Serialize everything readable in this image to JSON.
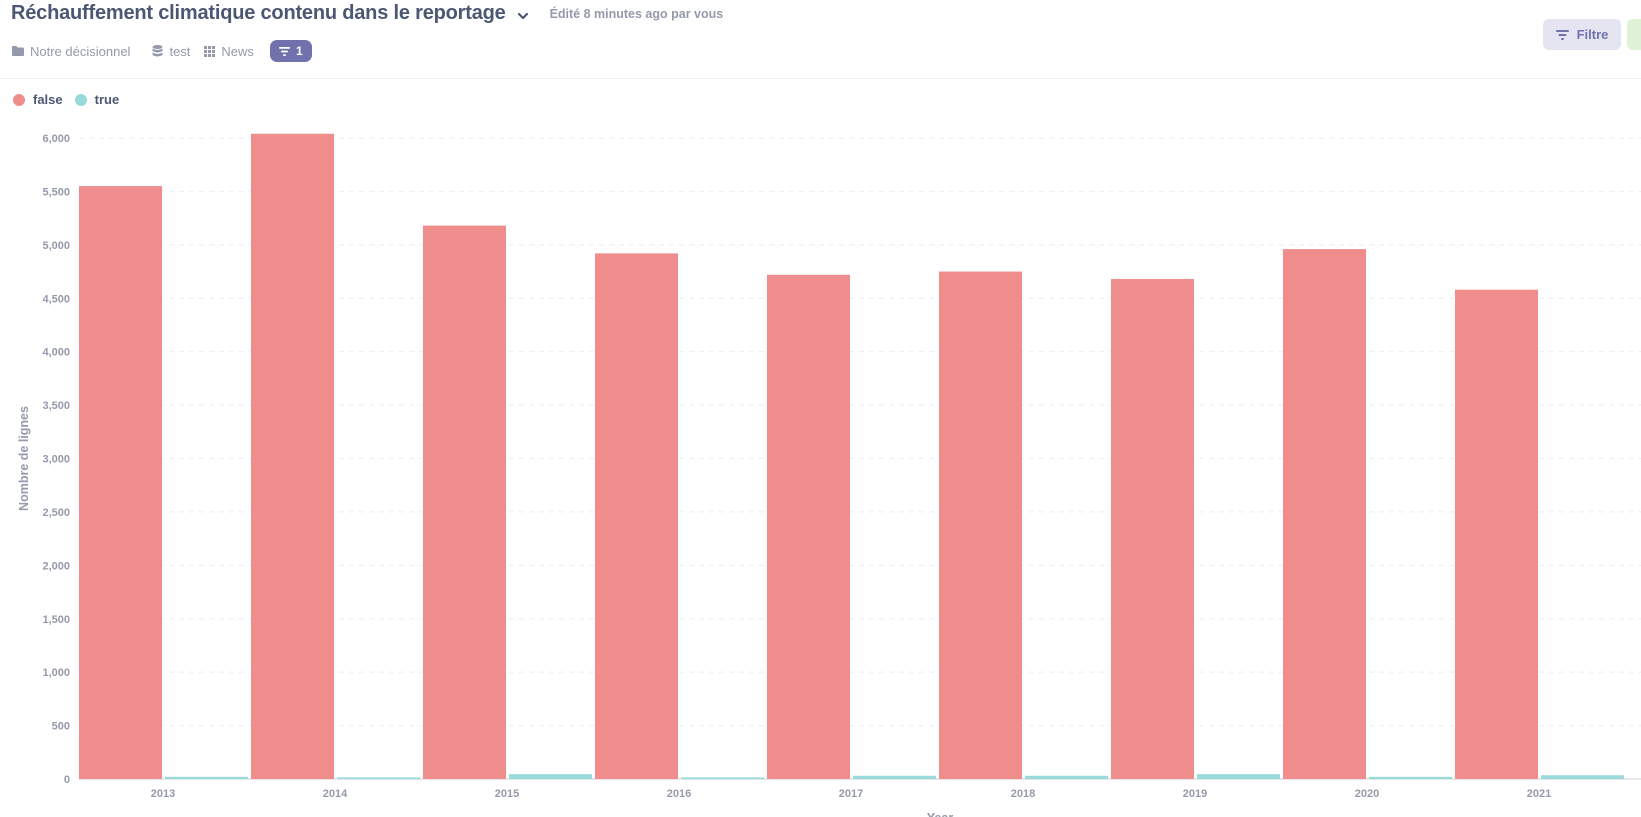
{
  "header": {
    "title": "Réchauffement climatique contenu dans le reportage",
    "edited": "Édité 8 minutes ago par vous",
    "breadcrumbs": [
      {
        "label": "Notre décisionnel",
        "icon": "folder-icon"
      },
      {
        "label": "test",
        "icon": "database-icon"
      },
      {
        "label": "News",
        "icon": "grid-icon"
      }
    ],
    "filter_count": "1",
    "filter_button": "Filtre"
  },
  "colors": {
    "false": "#ef8c8c",
    "true": "#98d9d9",
    "accent": "#7172ad"
  },
  "chart_data": {
    "type": "bar",
    "categories": [
      "2013",
      "2014",
      "2015",
      "2016",
      "2017",
      "2018",
      "2019",
      "2020",
      "2021"
    ],
    "series": [
      {
        "name": "false",
        "values": [
          5550,
          6040,
          5180,
          4920,
          4720,
          4750,
          4680,
          4960,
          4580
        ]
      },
      {
        "name": "true",
        "values": [
          20,
          15,
          45,
          15,
          30,
          30,
          45,
          20,
          35
        ]
      }
    ],
    "ylabel": "Nombre de lignes",
    "xlabel": "Year",
    "ylim": [
      0,
      6000
    ],
    "yticks": [
      "0",
      "500",
      "1,000",
      "1,500",
      "2,000",
      "2,500",
      "3,000",
      "3,500",
      "4,000",
      "4,500",
      "5,000",
      "5,500",
      "6,000"
    ],
    "grid": true,
    "legend": "top-left"
  }
}
